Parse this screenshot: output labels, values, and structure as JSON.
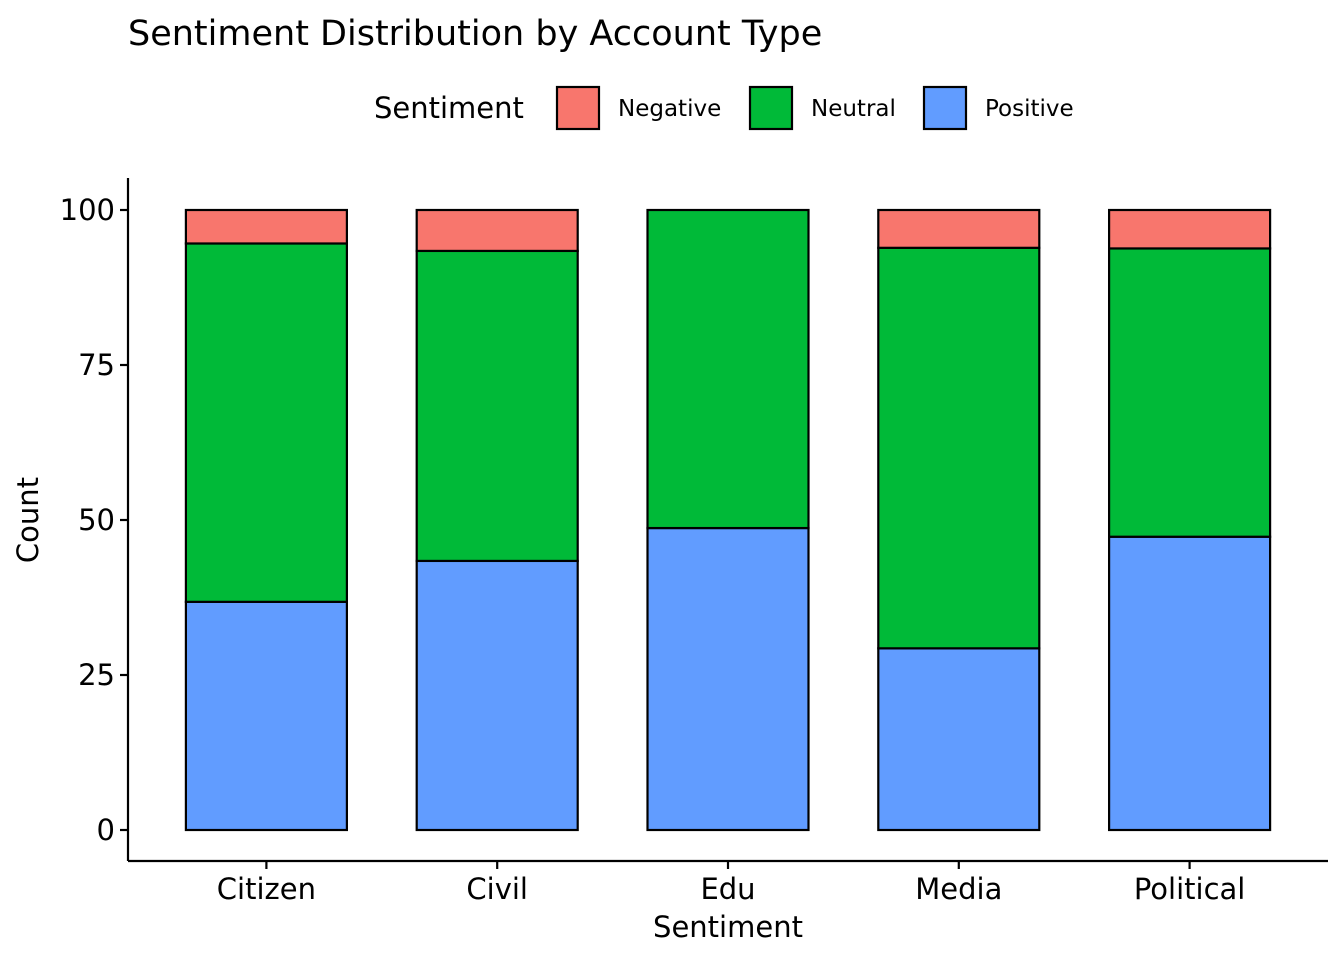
{
  "chart_data": {
    "type": "bar",
    "stacked": true,
    "title": "Sentiment Distribution by Account Type",
    "xlabel": "Sentiment",
    "ylabel": "Count",
    "ylim": [
      0,
      100
    ],
    "yticks": [
      0,
      25,
      50,
      75,
      100
    ],
    "legend": {
      "title": "Sentiment",
      "position": "top"
    },
    "categories": [
      "Citizen",
      "Civil",
      "Edu",
      "Media",
      "Political"
    ],
    "series": [
      {
        "name": "Positive",
        "color": "#619CFF",
        "values": [
          36.8,
          43.4,
          48.7,
          29.3,
          47.3
        ]
      },
      {
        "name": "Neutral",
        "color": "#00BA38",
        "values": [
          57.8,
          50.0,
          51.3,
          64.6,
          46.5
        ]
      },
      {
        "name": "Negative",
        "color": "#F8766D",
        "values": [
          5.4,
          6.6,
          0.0,
          6.1,
          6.2
        ]
      }
    ],
    "legend_order": [
      "Negative",
      "Neutral",
      "Positive"
    ],
    "grid": false
  }
}
